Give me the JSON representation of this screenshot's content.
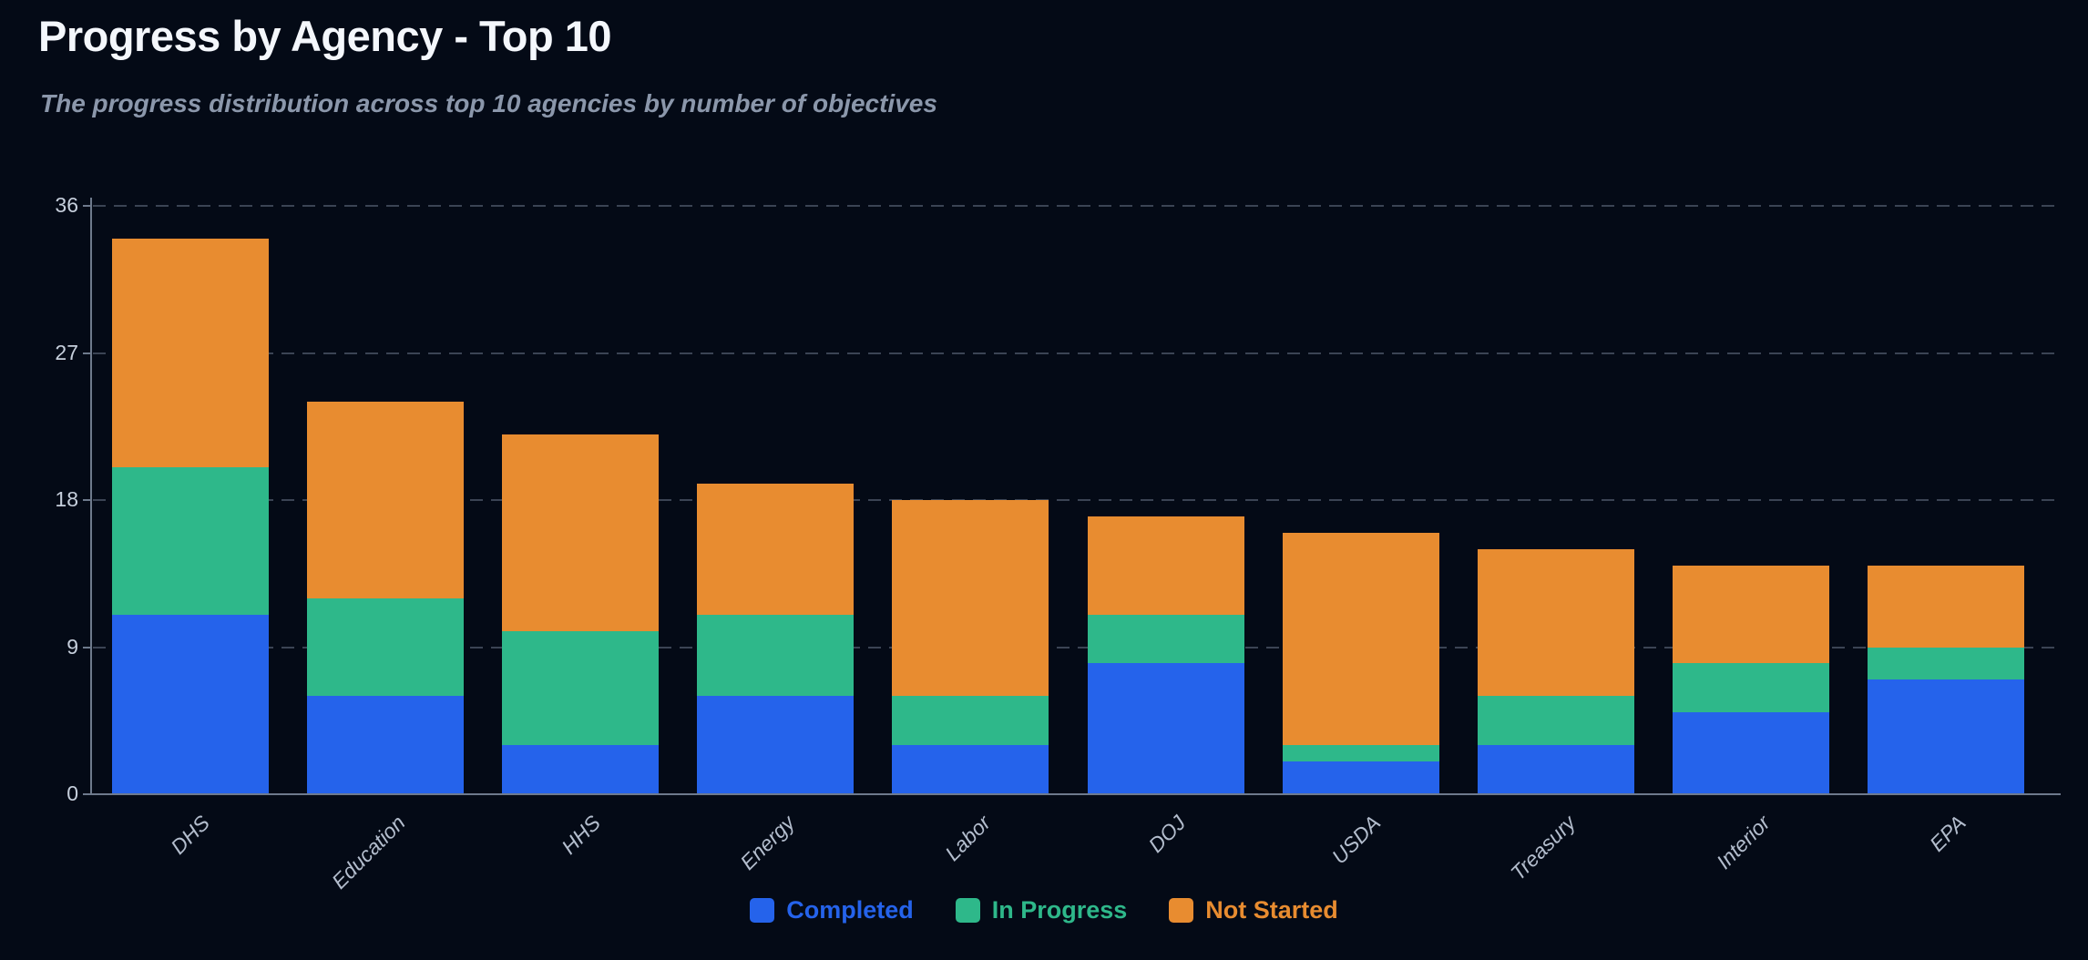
{
  "chart": {
    "title": "Progress by Agency - Top 10",
    "subtitle": "The progress distribution across top 10 agencies by number of objectives"
  },
  "chart_data": {
    "type": "bar",
    "stacked": true,
    "title": "Progress by Agency - Top 10",
    "subtitle": "The progress distribution across top 10 agencies by number of objectives",
    "xlabel": "",
    "ylabel": "",
    "categories": [
      "DHS",
      "Education",
      "HHS",
      "Energy",
      "Labor",
      "DOJ",
      "USDA",
      "Treasury",
      "Interior",
      "EPA"
    ],
    "series": [
      {
        "name": "Completed",
        "color": "#2563eb",
        "values": [
          11,
          6,
          3,
          6,
          3,
          8,
          2,
          3,
          5,
          7
        ]
      },
      {
        "name": "In Progress",
        "color": "#2eb88a",
        "values": [
          9,
          6,
          7,
          5,
          3,
          3,
          1,
          3,
          3,
          2
        ]
      },
      {
        "name": "Not Started",
        "color": "#e88c30",
        "values": [
          14,
          12,
          12,
          8,
          12,
          6,
          13,
          9,
          6,
          5
        ]
      }
    ],
    "stack_totals": [
      34,
      24,
      22,
      19,
      18,
      17,
      16,
      15,
      14,
      14
    ],
    "yticks": [
      0,
      9,
      18,
      27,
      36
    ],
    "ylim": [
      0,
      36
    ],
    "grid": "horizontal-dashed",
    "legend_position": "bottom-center"
  },
  "colors": {
    "background": "#040a16",
    "title_text": "#f4f7fc",
    "subtitle_text": "#8b97ab",
    "axis": "#6e7a8c",
    "tick_label": "#c6cfdc",
    "category_label": "#b3bdcd",
    "completed": "#2563eb",
    "in_progress": "#2eb88a",
    "not_started": "#e88c30"
  }
}
